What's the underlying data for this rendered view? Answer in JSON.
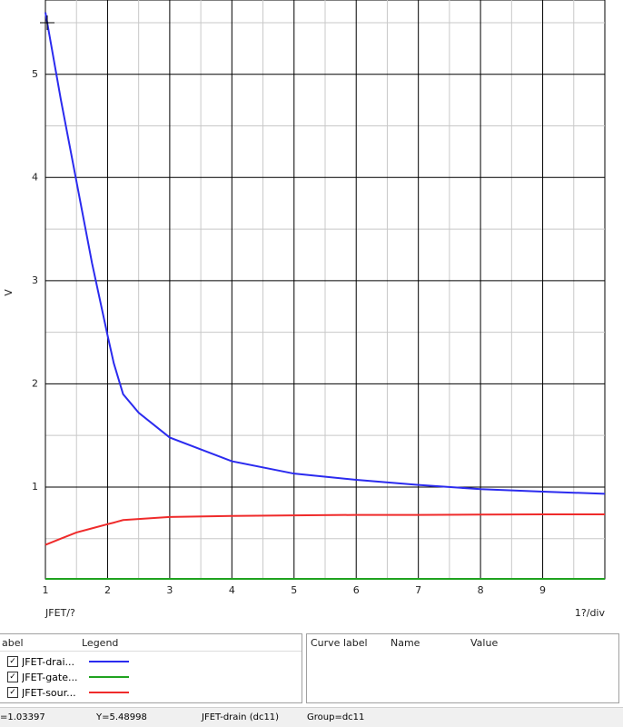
{
  "chart_data": {
    "type": "line",
    "y_label": "V",
    "x_label": "JFET/?",
    "x_unit_label": "1?/div",
    "x": [
      1,
      1.25,
      1.5,
      1.75,
      2,
      2.1,
      2.25,
      2.5,
      3,
      4,
      5,
      6,
      7,
      8,
      9,
      10
    ],
    "series": [
      {
        "name": "JFET-drai...",
        "color": "#2b2bef",
        "values": [
          5.6,
          4.75,
          3.96,
          3.17,
          2.47,
          2.2,
          1.9,
          1.72,
          1.48,
          1.25,
          1.13,
          1.07,
          1.02,
          0.98,
          0.955,
          0.935
        ]
      },
      {
        "name": "JFET-gate...",
        "color": "#1fa31f",
        "values": [
          0.11,
          0.11,
          0.11,
          0.11,
          0.11,
          0.11,
          0.11,
          0.11,
          0.11,
          0.11,
          0.11,
          0.11,
          0.11,
          0.11,
          0.11,
          0.11
        ]
      },
      {
        "name": "JFET-sour...",
        "color": "#ef2b2b",
        "values": [
          0.44,
          0.5,
          0.56,
          0.6,
          0.64,
          0.655,
          0.68,
          0.69,
          0.71,
          0.72,
          0.725,
          0.73,
          0.73,
          0.733,
          0.735,
          0.735
        ]
      }
    ],
    "xlim": [
      1,
      10
    ],
    "xticks": [
      1,
      2,
      3,
      4,
      5,
      6,
      7,
      8,
      9
    ],
    "ylim": [
      0.11,
      5.72
    ],
    "yticks": [
      1,
      2,
      3,
      4,
      5
    ],
    "grid": true
  },
  "legend_panel": {
    "headers": [
      "abel",
      "Legend"
    ]
  },
  "value_panel": {
    "headers": [
      "Curve label",
      "Name",
      "Value"
    ]
  },
  "status_bar": [
    "=1.03397",
    "Y=5.48998",
    "JFET-drain (dc11)",
    "Group=dc11"
  ]
}
